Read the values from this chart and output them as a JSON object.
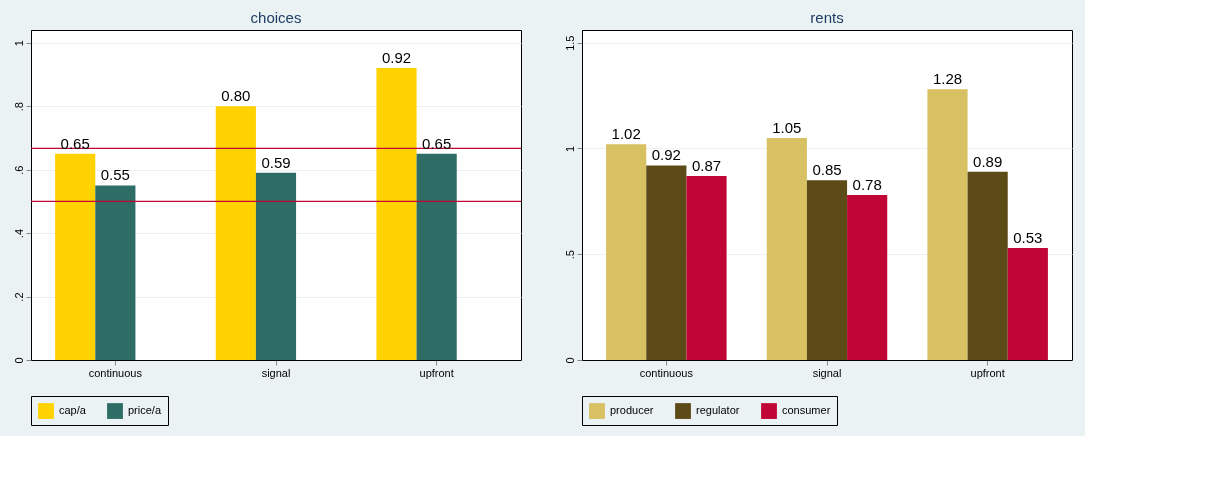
{
  "chart_data": [
    {
      "type": "bar",
      "title": "choices",
      "categories": [
        "continuous",
        "signal",
        "upfront"
      ],
      "series": [
        {
          "name": "cap/a",
          "color": "#ffd200",
          "values": [
            0.65,
            0.8,
            0.92
          ],
          "value_labels": [
            "0.65",
            "0.80",
            "0.92"
          ]
        },
        {
          "name": "price/a",
          "color": "#2d6d66",
          "values": [
            0.55,
            0.59,
            0.65
          ],
          "value_labels": [
            "0.55",
            "0.59",
            "0.65"
          ]
        }
      ],
      "ylim": [
        0,
        1.04
      ],
      "yticks": [
        0,
        {
          "value": 0.2,
          "label": ".2"
        },
        {
          "value": 0.4,
          "label": ".4"
        },
        {
          "value": 0.6,
          "label": ".6"
        },
        {
          "value": 0.8,
          "label": ".8"
        },
        1
      ],
      "ref_lines": [
        {
          "axis": "y",
          "value": 0.667,
          "color": "#c10534"
        },
        {
          "axis": "y",
          "value": 0.5,
          "color": "#c10534"
        }
      ],
      "grid": "y",
      "legend": "bottom"
    },
    {
      "type": "bar",
      "title": "rents",
      "categories": [
        "continuous",
        "signal",
        "upfront"
      ],
      "series": [
        {
          "name": "producer",
          "color": "#d7c163",
          "values": [
            1.02,
            1.05,
            1.28
          ],
          "value_labels": [
            "1.02",
            "1.05",
            "1.28"
          ]
        },
        {
          "name": "regulator",
          "color": "#5c4a17",
          "values": [
            0.92,
            0.85,
            0.89
          ],
          "value_labels": [
            "0.92",
            "0.85",
            "0.89"
          ]
        },
        {
          "name": "consumer",
          "color": "#c10534",
          "values": [
            0.87,
            0.78,
            0.53
          ],
          "value_labels": [
            "0.87",
            "0.78",
            "0.53"
          ]
        }
      ],
      "ylim": [
        0,
        1.56
      ],
      "yticks": [
        0,
        {
          "value": 0.5,
          "label": ".5"
        },
        1,
        {
          "value": 1.5,
          "label": "1.5"
        }
      ],
      "grid": "y",
      "legend": "bottom"
    }
  ]
}
